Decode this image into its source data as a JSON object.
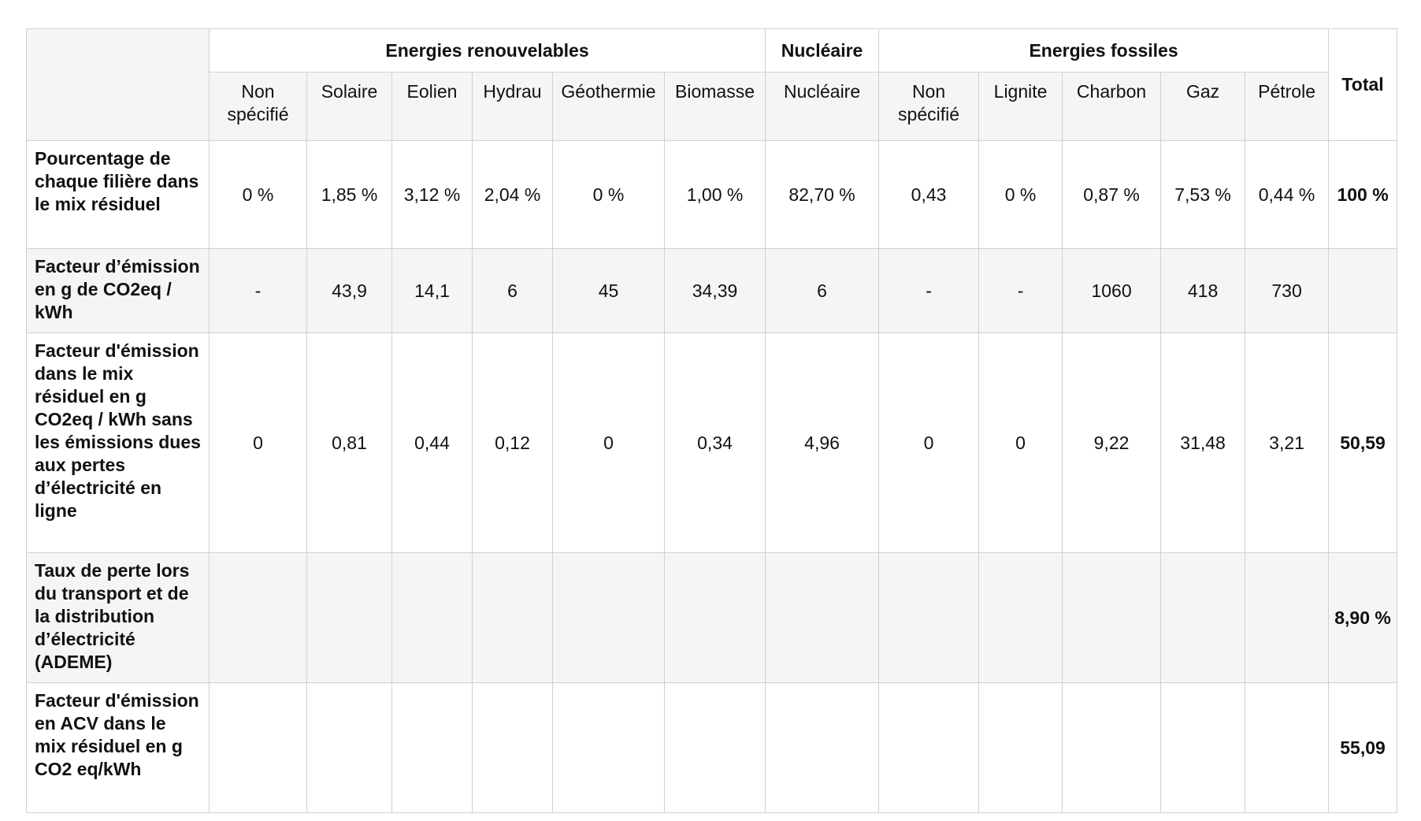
{
  "table": {
    "groups": {
      "renewables": "Energies renouvelables",
      "nuclear": "Nucléaire",
      "fossil": "Energies fossiles",
      "total": "Total"
    },
    "columns": [
      "Non spécifié",
      "Solaire",
      "Eolien",
      "Hydrau",
      "Géothermie",
      "Biomasse",
      "Nucléaire",
      "Non spécifié",
      "Lignite",
      "Charbon",
      "Gaz",
      "Pétrole"
    ],
    "rows": [
      {
        "label": "Pourcentage de chaque filière dans le mix résiduel",
        "values": [
          "0 %",
          "1,85 %",
          "3,12 %",
          "2,04 %",
          "0 %",
          "1,00 %",
          "82,70 %",
          "0,43",
          "0 %",
          "0,87 %",
          "7,53 %",
          "0,44 %"
        ],
        "total": "100 %"
      },
      {
        "label": "Facteur d’émission en g de CO2eq / kWh",
        "values": [
          "-",
          "43,9",
          "14,1",
          "6",
          "45",
          "34,39",
          "6",
          "-",
          "-",
          "1060",
          "418",
          "730"
        ],
        "total": ""
      },
      {
        "label": "Facteur d'émission dans le mix résiduel en g CO2eq / kWh sans les émissions dues aux pertes d’électricité en ligne",
        "values": [
          "0",
          "0,81",
          "0,44",
          "0,12",
          "0",
          "0,34",
          "4,96",
          "0",
          "0",
          "9,22",
          "31,48",
          "3,21"
        ],
        "total": "50,59"
      },
      {
        "label": "Taux de perte lors du transport et de la distribution d’électricité (ADEME)",
        "values": [
          "",
          "",
          "",
          "",
          "",
          "",
          "",
          "",
          "",
          "",
          "",
          ""
        ],
        "total": "8,90 %"
      },
      {
        "label": "Facteur d'émission en ACV dans le mix résiduel en g CO2 eq/kWh",
        "values": [
          "",
          "",
          "",
          "",
          "",
          "",
          "",
          "",
          "",
          "",
          "",
          ""
        ],
        "total": "55,09"
      }
    ]
  }
}
